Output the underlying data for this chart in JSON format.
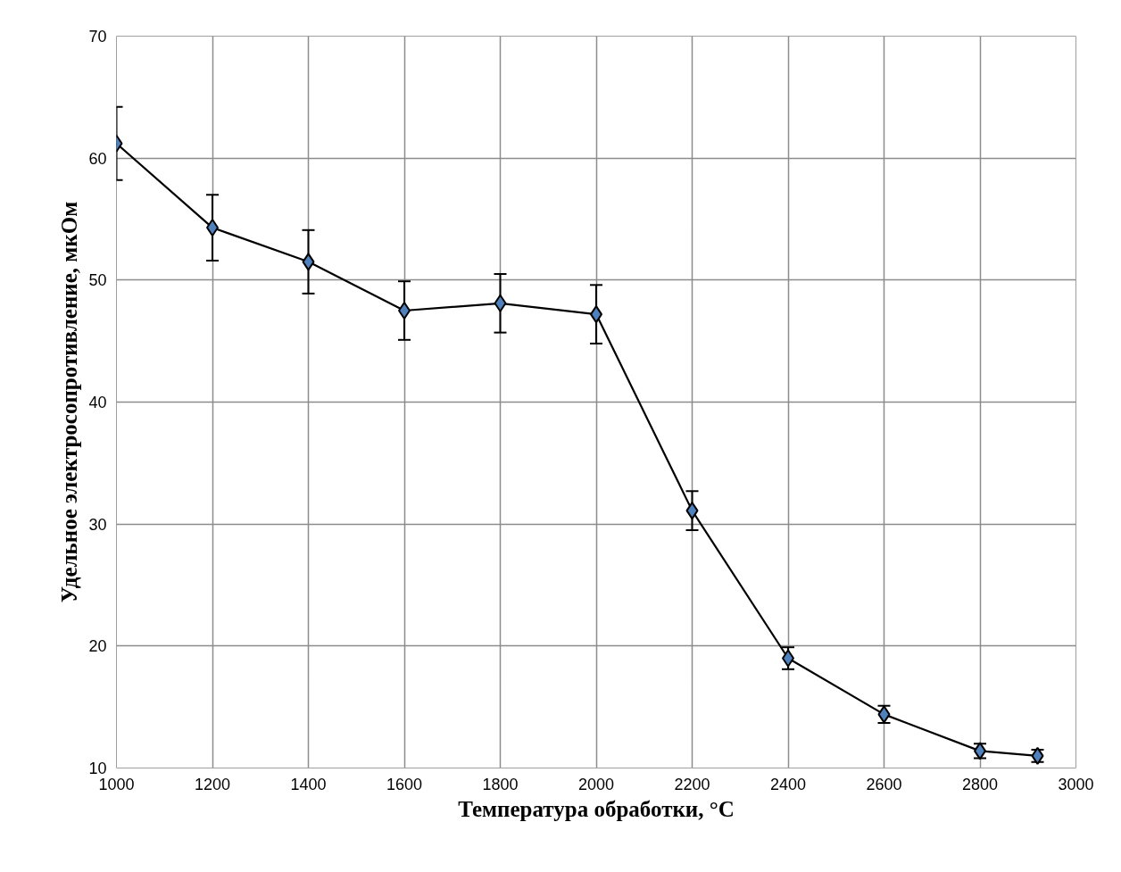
{
  "chart_data": {
    "type": "line",
    "xlabel": "Температура обработки, °C",
    "ylabel": "Удельное электросопротивление, мкОм",
    "x": [
      1000,
      1200,
      1400,
      1600,
      1800,
      2000,
      2200,
      2400,
      2600,
      2800,
      2920
    ],
    "series": [
      {
        "color": "#4f81bd",
        "values": [
          61.2,
          54.3,
          51.5,
          47.5,
          48.1,
          47.2,
          31.1,
          19.0,
          14.4,
          11.4,
          11.0
        ],
        "errors": [
          3.0,
          2.7,
          2.6,
          2.4,
          2.4,
          2.4,
          1.6,
          0.9,
          0.7,
          0.6,
          0.5
        ]
      }
    ],
    "xlim": [
      1000,
      3000
    ],
    "xticks": [
      1000,
      1200,
      1400,
      1600,
      1800,
      2000,
      2200,
      2400,
      2600,
      2800,
      3000
    ],
    "ylim": [
      10,
      70
    ],
    "yticks": [
      10,
      20,
      30,
      40,
      50,
      60,
      70
    ],
    "grid": true,
    "marker": "diamond",
    "line_style": "solid"
  }
}
